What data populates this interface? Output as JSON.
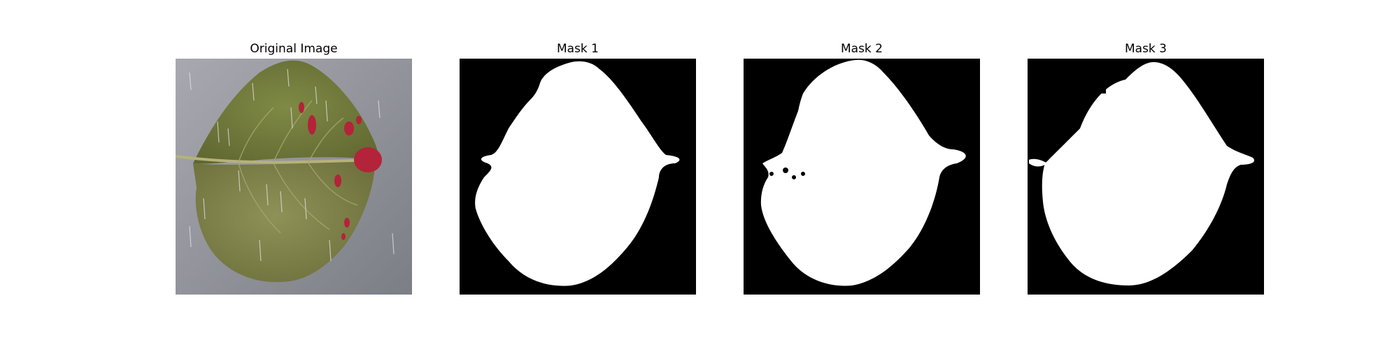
{
  "panels": [
    {
      "title": "Original Image",
      "image": "leaf-photo"
    },
    {
      "title": "Mask 1",
      "image": "leaf-mask"
    },
    {
      "title": "Mask 2",
      "image": "leaf-mask"
    },
    {
      "title": "Mask 3",
      "image": "leaf-mask"
    }
  ],
  "colors": {
    "mask_background": "#000000",
    "mask_foreground": "#ffffff",
    "photo_background": "#8e9097",
    "leaf_green": "#7d7f47",
    "lesion_red": "#b3233a"
  }
}
